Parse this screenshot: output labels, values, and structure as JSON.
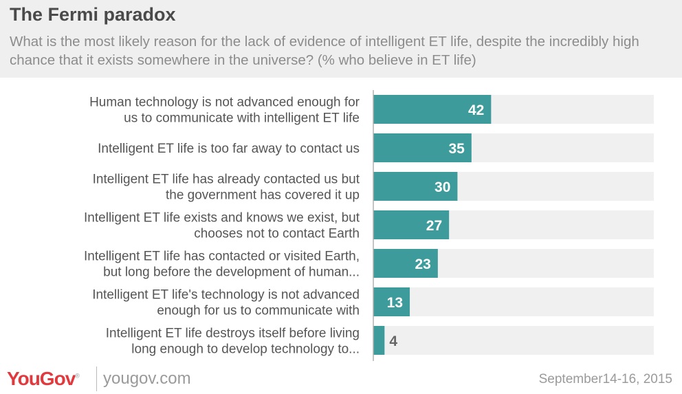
{
  "header": {
    "title": "The Fermi paradox",
    "subtitle": "What is the most likely reason for the lack of evidence of intelligent ET life, despite the incredibly high chance that it exists somewhere in the universe? (% who believe in ET life)"
  },
  "footer": {
    "logo": "YouGov",
    "url": "yougov.com",
    "date": "September14-16, 2015"
  },
  "colors": {
    "bar": "#3d9b9b",
    "track": "#f0f0f0",
    "axis": "#b0b0b0",
    "label": "#555555",
    "value_inside": "#ffffff",
    "value_outside": "#666666"
  },
  "chart_data": {
    "type": "bar",
    "orientation": "horizontal",
    "xlim": [
      0,
      100
    ],
    "categories": [
      [
        "Human technology is not advanced enough for",
        "us to communicate with intelligent ET life"
      ],
      [
        "Intelligent ET life is too far away to contact us"
      ],
      [
        "Intelligent ET life has already contacted us but",
        "the government has covered it up"
      ],
      [
        "Intelligent ET life exists and knows we exist, but",
        "chooses not to contact Earth"
      ],
      [
        "Intelligent ET life has contacted or visited Earth,",
        "but long before the development of human..."
      ],
      [
        "Intelligent ET life's technology is not advanced",
        "enough for us to communicate with"
      ],
      [
        "Intelligent ET life destroys itself before living",
        "long enough to develop technology to..."
      ]
    ],
    "values": [
      42,
      35,
      30,
      27,
      23,
      13,
      4
    ]
  }
}
